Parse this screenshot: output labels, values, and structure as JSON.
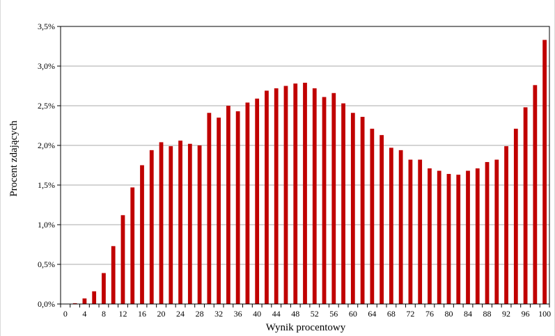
{
  "chart_data": {
    "type": "bar",
    "title": "",
    "xlabel": "Wynik procentowy",
    "ylabel": "Procent zdających",
    "ylim": [
      0,
      3.5
    ],
    "yticks": [
      0,
      0.5,
      1.0,
      1.5,
      2.0,
      2.5,
      3.0,
      3.5
    ],
    "ytick_labels": [
      "0,0%",
      "0,5%",
      "1,0%",
      "1,5%",
      "2,0%",
      "2,5%",
      "3,0%",
      "3,5%"
    ],
    "xtick_labels": [
      "0",
      "4",
      "8",
      "12",
      "16",
      "20",
      "24",
      "28",
      "32",
      "36",
      "40",
      "44",
      "48",
      "52",
      "56",
      "60",
      "64",
      "68",
      "72",
      "76",
      "80",
      "84",
      "88",
      "92",
      "96",
      "100"
    ],
    "grid": "horizontal",
    "bar_color": "#c00000",
    "categories": [
      0,
      2,
      4,
      6,
      8,
      10,
      12,
      14,
      16,
      18,
      20,
      22,
      24,
      26,
      28,
      30,
      32,
      34,
      36,
      38,
      40,
      42,
      44,
      46,
      48,
      50,
      52,
      54,
      56,
      58,
      60,
      62,
      64,
      66,
      68,
      70,
      72,
      74,
      76,
      78,
      80,
      82,
      84,
      86,
      88,
      90,
      92,
      94,
      96,
      98,
      100
    ],
    "values": [
      0.0,
      0.01,
      0.07,
      0.16,
      0.39,
      0.73,
      1.12,
      1.47,
      1.75,
      1.94,
      2.04,
      1.99,
      2.06,
      2.02,
      2.0,
      2.41,
      2.35,
      2.5,
      2.43,
      2.54,
      2.59,
      2.69,
      2.72,
      2.75,
      2.78,
      2.79,
      2.72,
      2.61,
      2.66,
      2.53,
      2.41,
      2.36,
      2.21,
      2.13,
      1.97,
      1.94,
      1.82,
      1.82,
      1.71,
      1.68,
      1.64,
      1.63,
      1.68,
      1.71,
      1.79,
      1.82,
      1.99,
      2.21,
      2.48,
      2.76,
      3.33
    ]
  }
}
